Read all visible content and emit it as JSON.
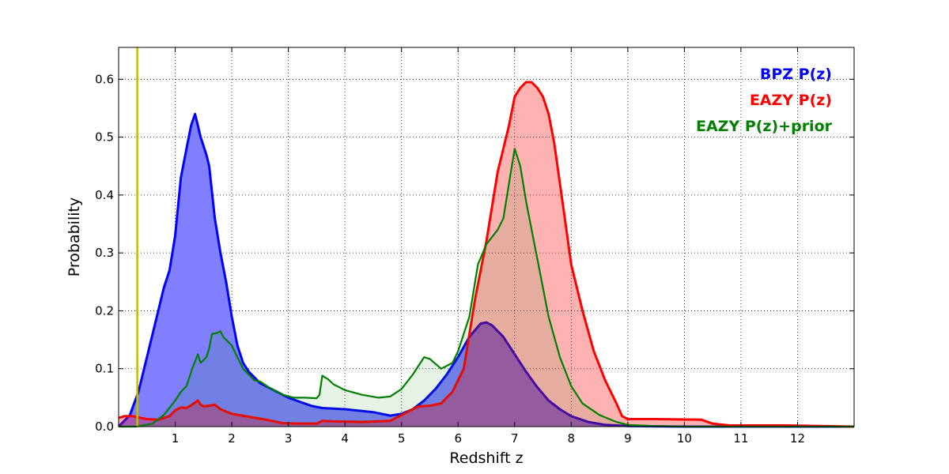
{
  "chart_data": {
    "type": "area",
    "xlabel": "Redshift z",
    "ylabel": "Probability",
    "xlim": [
      0,
      13
    ],
    "ylim": [
      0,
      0.655
    ],
    "grid": true,
    "legend_position": "top-right",
    "x_ticks": [
      1,
      2,
      3,
      4,
      5,
      6,
      7,
      8,
      9,
      10,
      11,
      12
    ],
    "x_tick_labels": [
      "1",
      "2",
      "3",
      "4",
      "5",
      "6",
      "7",
      "8",
      "9",
      "10",
      "11",
      "12"
    ],
    "y_ticks": [
      0.0,
      0.1,
      0.2,
      0.3,
      0.4,
      0.5,
      0.6
    ],
    "y_tick_labels": [
      "0.0",
      "0.1",
      "0.2",
      "0.3",
      "0.4",
      "0.5",
      "0.6"
    ],
    "vline": {
      "x": 0.33,
      "color": "#bfbf00"
    },
    "series": [
      {
        "name": "BPZ P(z)",
        "color": "#0000ff",
        "fill": "#7f7fff",
        "fill_opacity": 1.0,
        "points": [
          [
            0,
            0
          ],
          [
            0.2,
            0.02
          ],
          [
            0.35,
            0.06
          ],
          [
            0.5,
            0.12
          ],
          [
            0.7,
            0.2
          ],
          [
            0.8,
            0.24
          ],
          [
            0.9,
            0.27
          ],
          [
            1.0,
            0.33
          ],
          [
            1.1,
            0.43
          ],
          [
            1.2,
            0.48
          ],
          [
            1.28,
            0.52
          ],
          [
            1.35,
            0.54
          ],
          [
            1.4,
            0.52
          ],
          [
            1.45,
            0.5
          ],
          [
            1.55,
            0.47
          ],
          [
            1.6,
            0.45
          ],
          [
            1.7,
            0.36
          ],
          [
            1.8,
            0.3
          ],
          [
            1.9,
            0.25
          ],
          [
            2.0,
            0.19
          ],
          [
            2.1,
            0.14
          ],
          [
            2.2,
            0.11
          ],
          [
            2.3,
            0.095
          ],
          [
            2.4,
            0.085
          ],
          [
            2.5,
            0.075
          ],
          [
            2.6,
            0.07
          ],
          [
            2.8,
            0.06
          ],
          [
            3.0,
            0.05
          ],
          [
            3.2,
            0.043
          ],
          [
            3.4,
            0.036
          ],
          [
            3.6,
            0.032
          ],
          [
            4.0,
            0.03
          ],
          [
            4.5,
            0.025
          ],
          [
            4.8,
            0.019
          ],
          [
            5.0,
            0.022
          ],
          [
            5.2,
            0.03
          ],
          [
            5.4,
            0.045
          ],
          [
            5.6,
            0.065
          ],
          [
            5.8,
            0.09
          ],
          [
            6.0,
            0.12
          ],
          [
            6.2,
            0.155
          ],
          [
            6.4,
            0.178
          ],
          [
            6.5,
            0.18
          ],
          [
            6.6,
            0.175
          ],
          [
            6.8,
            0.155
          ],
          [
            7.0,
            0.125
          ],
          [
            7.2,
            0.095
          ],
          [
            7.4,
            0.068
          ],
          [
            7.6,
            0.045
          ],
          [
            7.8,
            0.03
          ],
          [
            8.0,
            0.018
          ],
          [
            8.3,
            0.008
          ],
          [
            8.6,
            0.003
          ],
          [
            9.0,
            0.001
          ],
          [
            10.0,
            0
          ],
          [
            13.0,
            0
          ]
        ]
      },
      {
        "name": "EAZY P(z)",
        "color": "#ff0000",
        "fill": "#ff0000",
        "fill_opacity": 0.3,
        "points": [
          [
            0,
            0.015
          ],
          [
            0.1,
            0.018
          ],
          [
            0.25,
            0.018
          ],
          [
            0.35,
            0.016
          ],
          [
            0.5,
            0.013
          ],
          [
            0.7,
            0.012
          ],
          [
            0.9,
            0.018
          ],
          [
            1.0,
            0.028
          ],
          [
            1.1,
            0.033
          ],
          [
            1.2,
            0.032
          ],
          [
            1.3,
            0.038
          ],
          [
            1.4,
            0.045
          ],
          [
            1.45,
            0.038
          ],
          [
            1.5,
            0.035
          ],
          [
            1.6,
            0.036
          ],
          [
            1.7,
            0.038
          ],
          [
            1.8,
            0.03
          ],
          [
            2.0,
            0.022
          ],
          [
            2.3,
            0.017
          ],
          [
            2.6,
            0.012
          ],
          [
            2.9,
            0.006
          ],
          [
            3.2,
            0.005
          ],
          [
            3.5,
            0.005
          ],
          [
            3.6,
            0.01
          ],
          [
            3.8,
            0.009
          ],
          [
            4.3,
            0.008
          ],
          [
            4.8,
            0.01
          ],
          [
            5.1,
            0.025
          ],
          [
            5.3,
            0.035
          ],
          [
            5.5,
            0.036
          ],
          [
            5.7,
            0.04
          ],
          [
            5.9,
            0.06
          ],
          [
            6.1,
            0.1
          ],
          [
            6.3,
            0.22
          ],
          [
            6.5,
            0.32
          ],
          [
            6.7,
            0.44
          ],
          [
            6.9,
            0.52
          ],
          [
            7.0,
            0.57
          ],
          [
            7.1,
            0.585
          ],
          [
            7.2,
            0.595
          ],
          [
            7.3,
            0.595
          ],
          [
            7.4,
            0.585
          ],
          [
            7.5,
            0.57
          ],
          [
            7.6,
            0.54
          ],
          [
            7.7,
            0.49
          ],
          [
            7.8,
            0.42
          ],
          [
            7.9,
            0.35
          ],
          [
            8.0,
            0.28
          ],
          [
            8.2,
            0.2
          ],
          [
            8.4,
            0.13
          ],
          [
            8.6,
            0.08
          ],
          [
            8.8,
            0.04
          ],
          [
            8.9,
            0.018
          ],
          [
            9.0,
            0.013
          ],
          [
            9.5,
            0.013
          ],
          [
            10.3,
            0.012
          ],
          [
            10.5,
            0.005
          ],
          [
            10.8,
            0.002
          ],
          [
            11.8,
            0.002
          ],
          [
            13.0,
            0
          ]
        ]
      },
      {
        "name": "EAZY P(z)+prior",
        "color": "#008000",
        "fill": "#008000",
        "fill_opacity": 0.1,
        "points": [
          [
            0,
            0
          ],
          [
            0.3,
            0
          ],
          [
            0.6,
            0.005
          ],
          [
            0.8,
            0.02
          ],
          [
            1.0,
            0.045
          ],
          [
            1.1,
            0.06
          ],
          [
            1.2,
            0.07
          ],
          [
            1.3,
            0.1
          ],
          [
            1.4,
            0.125
          ],
          [
            1.45,
            0.11
          ],
          [
            1.55,
            0.12
          ],
          [
            1.6,
            0.135
          ],
          [
            1.65,
            0.16
          ],
          [
            1.75,
            0.162
          ],
          [
            1.8,
            0.165
          ],
          [
            1.85,
            0.155
          ],
          [
            1.9,
            0.15
          ],
          [
            2.0,
            0.14
          ],
          [
            2.1,
            0.12
          ],
          [
            2.2,
            0.1
          ],
          [
            2.3,
            0.09
          ],
          [
            2.4,
            0.08
          ],
          [
            2.5,
            0.078
          ],
          [
            2.7,
            0.065
          ],
          [
            2.9,
            0.055
          ],
          [
            3.1,
            0.05
          ],
          [
            3.3,
            0.05
          ],
          [
            3.5,
            0.049
          ],
          [
            3.55,
            0.055
          ],
          [
            3.6,
            0.088
          ],
          [
            3.7,
            0.082
          ],
          [
            3.8,
            0.073
          ],
          [
            4.0,
            0.063
          ],
          [
            4.3,
            0.055
          ],
          [
            4.6,
            0.05
          ],
          [
            4.8,
            0.052
          ],
          [
            5.0,
            0.065
          ],
          [
            5.2,
            0.09
          ],
          [
            5.4,
            0.12
          ],
          [
            5.5,
            0.117
          ],
          [
            5.7,
            0.1
          ],
          [
            5.9,
            0.11
          ],
          [
            6.0,
            0.13
          ],
          [
            6.2,
            0.19
          ],
          [
            6.35,
            0.28
          ],
          [
            6.5,
            0.315
          ],
          [
            6.7,
            0.34
          ],
          [
            6.8,
            0.36
          ],
          [
            6.9,
            0.42
          ],
          [
            7.0,
            0.48
          ],
          [
            7.1,
            0.45
          ],
          [
            7.2,
            0.39
          ],
          [
            7.4,
            0.29
          ],
          [
            7.6,
            0.19
          ],
          [
            7.8,
            0.12
          ],
          [
            8.0,
            0.07
          ],
          [
            8.2,
            0.04
          ],
          [
            8.5,
            0.02
          ],
          [
            8.8,
            0.008
          ],
          [
            9.0,
            0.003
          ],
          [
            9.5,
            0.001
          ],
          [
            10.0,
            0
          ],
          [
            13.0,
            0
          ]
        ]
      }
    ],
    "legend": [
      {
        "label": "BPZ P(z)",
        "color": "#0000ff"
      },
      {
        "label": "EAZY P(z)",
        "color": "#ff0000"
      },
      {
        "label": "EAZY P(z)+prior",
        "color": "#008000"
      }
    ]
  }
}
